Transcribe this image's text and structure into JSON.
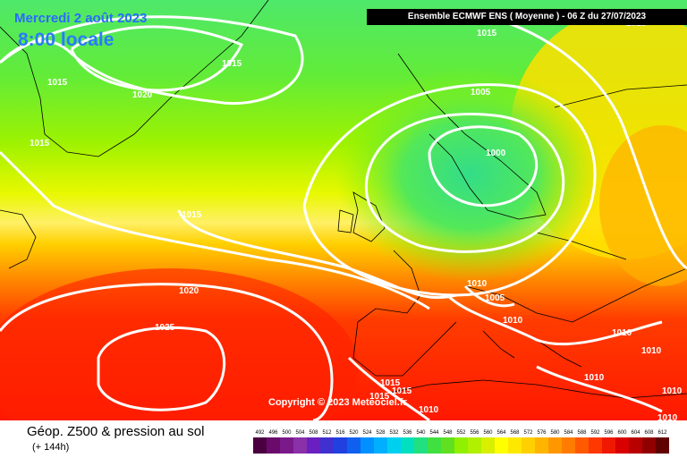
{
  "header": {
    "date": "Mercredi 2 août 2023",
    "time": "8:00 locale",
    "model_info": "Ensemble ECMWF ENS  ( Moyenne )  -  06 Z du 27/07/2023"
  },
  "copyright": "Copyright © 2023 Meteociel.fr",
  "footer": {
    "title": "Géop. Z500 & pression au sol",
    "subtitle": "(+ 144h)"
  },
  "isobar_labels": [
    "1015",
    "1015",
    "1015",
    "1020",
    "1015",
    "1015",
    "1005",
    "1000",
    "1015",
    "1020",
    "1025",
    "1010",
    "1005",
    "1010",
    "1010",
    "1010",
    "1010",
    "1015",
    "1015",
    "1010",
    "1010",
    "1010",
    "1015"
  ],
  "legend": {
    "values": [
      "492",
      "496",
      "500",
      "504",
      "508",
      "512",
      "516",
      "520",
      "524",
      "528",
      "532",
      "536",
      "540",
      "544",
      "548",
      "552",
      "556",
      "560",
      "564",
      "568",
      "572",
      "576",
      "580",
      "584",
      "588",
      "592",
      "596",
      "600",
      "604",
      "608",
      "612"
    ],
    "colors": [
      "#4a0040",
      "#6a0a6a",
      "#7a1a8a",
      "#8a30a8",
      "#6a20c0",
      "#4030d0",
      "#2040e0",
      "#1060f0",
      "#0090ff",
      "#00b0ff",
      "#00d0f0",
      "#00e0c0",
      "#20e080",
      "#40e040",
      "#60e020",
      "#90f000",
      "#b0f000",
      "#d8f000",
      "#ffff00",
      "#ffe800",
      "#ffd000",
      "#ffb400",
      "#ff9800",
      "#ff7c00",
      "#ff5a00",
      "#ff3800",
      "#f01800",
      "#d80000",
      "#b80000",
      "#900000",
      "#600000"
    ]
  }
}
